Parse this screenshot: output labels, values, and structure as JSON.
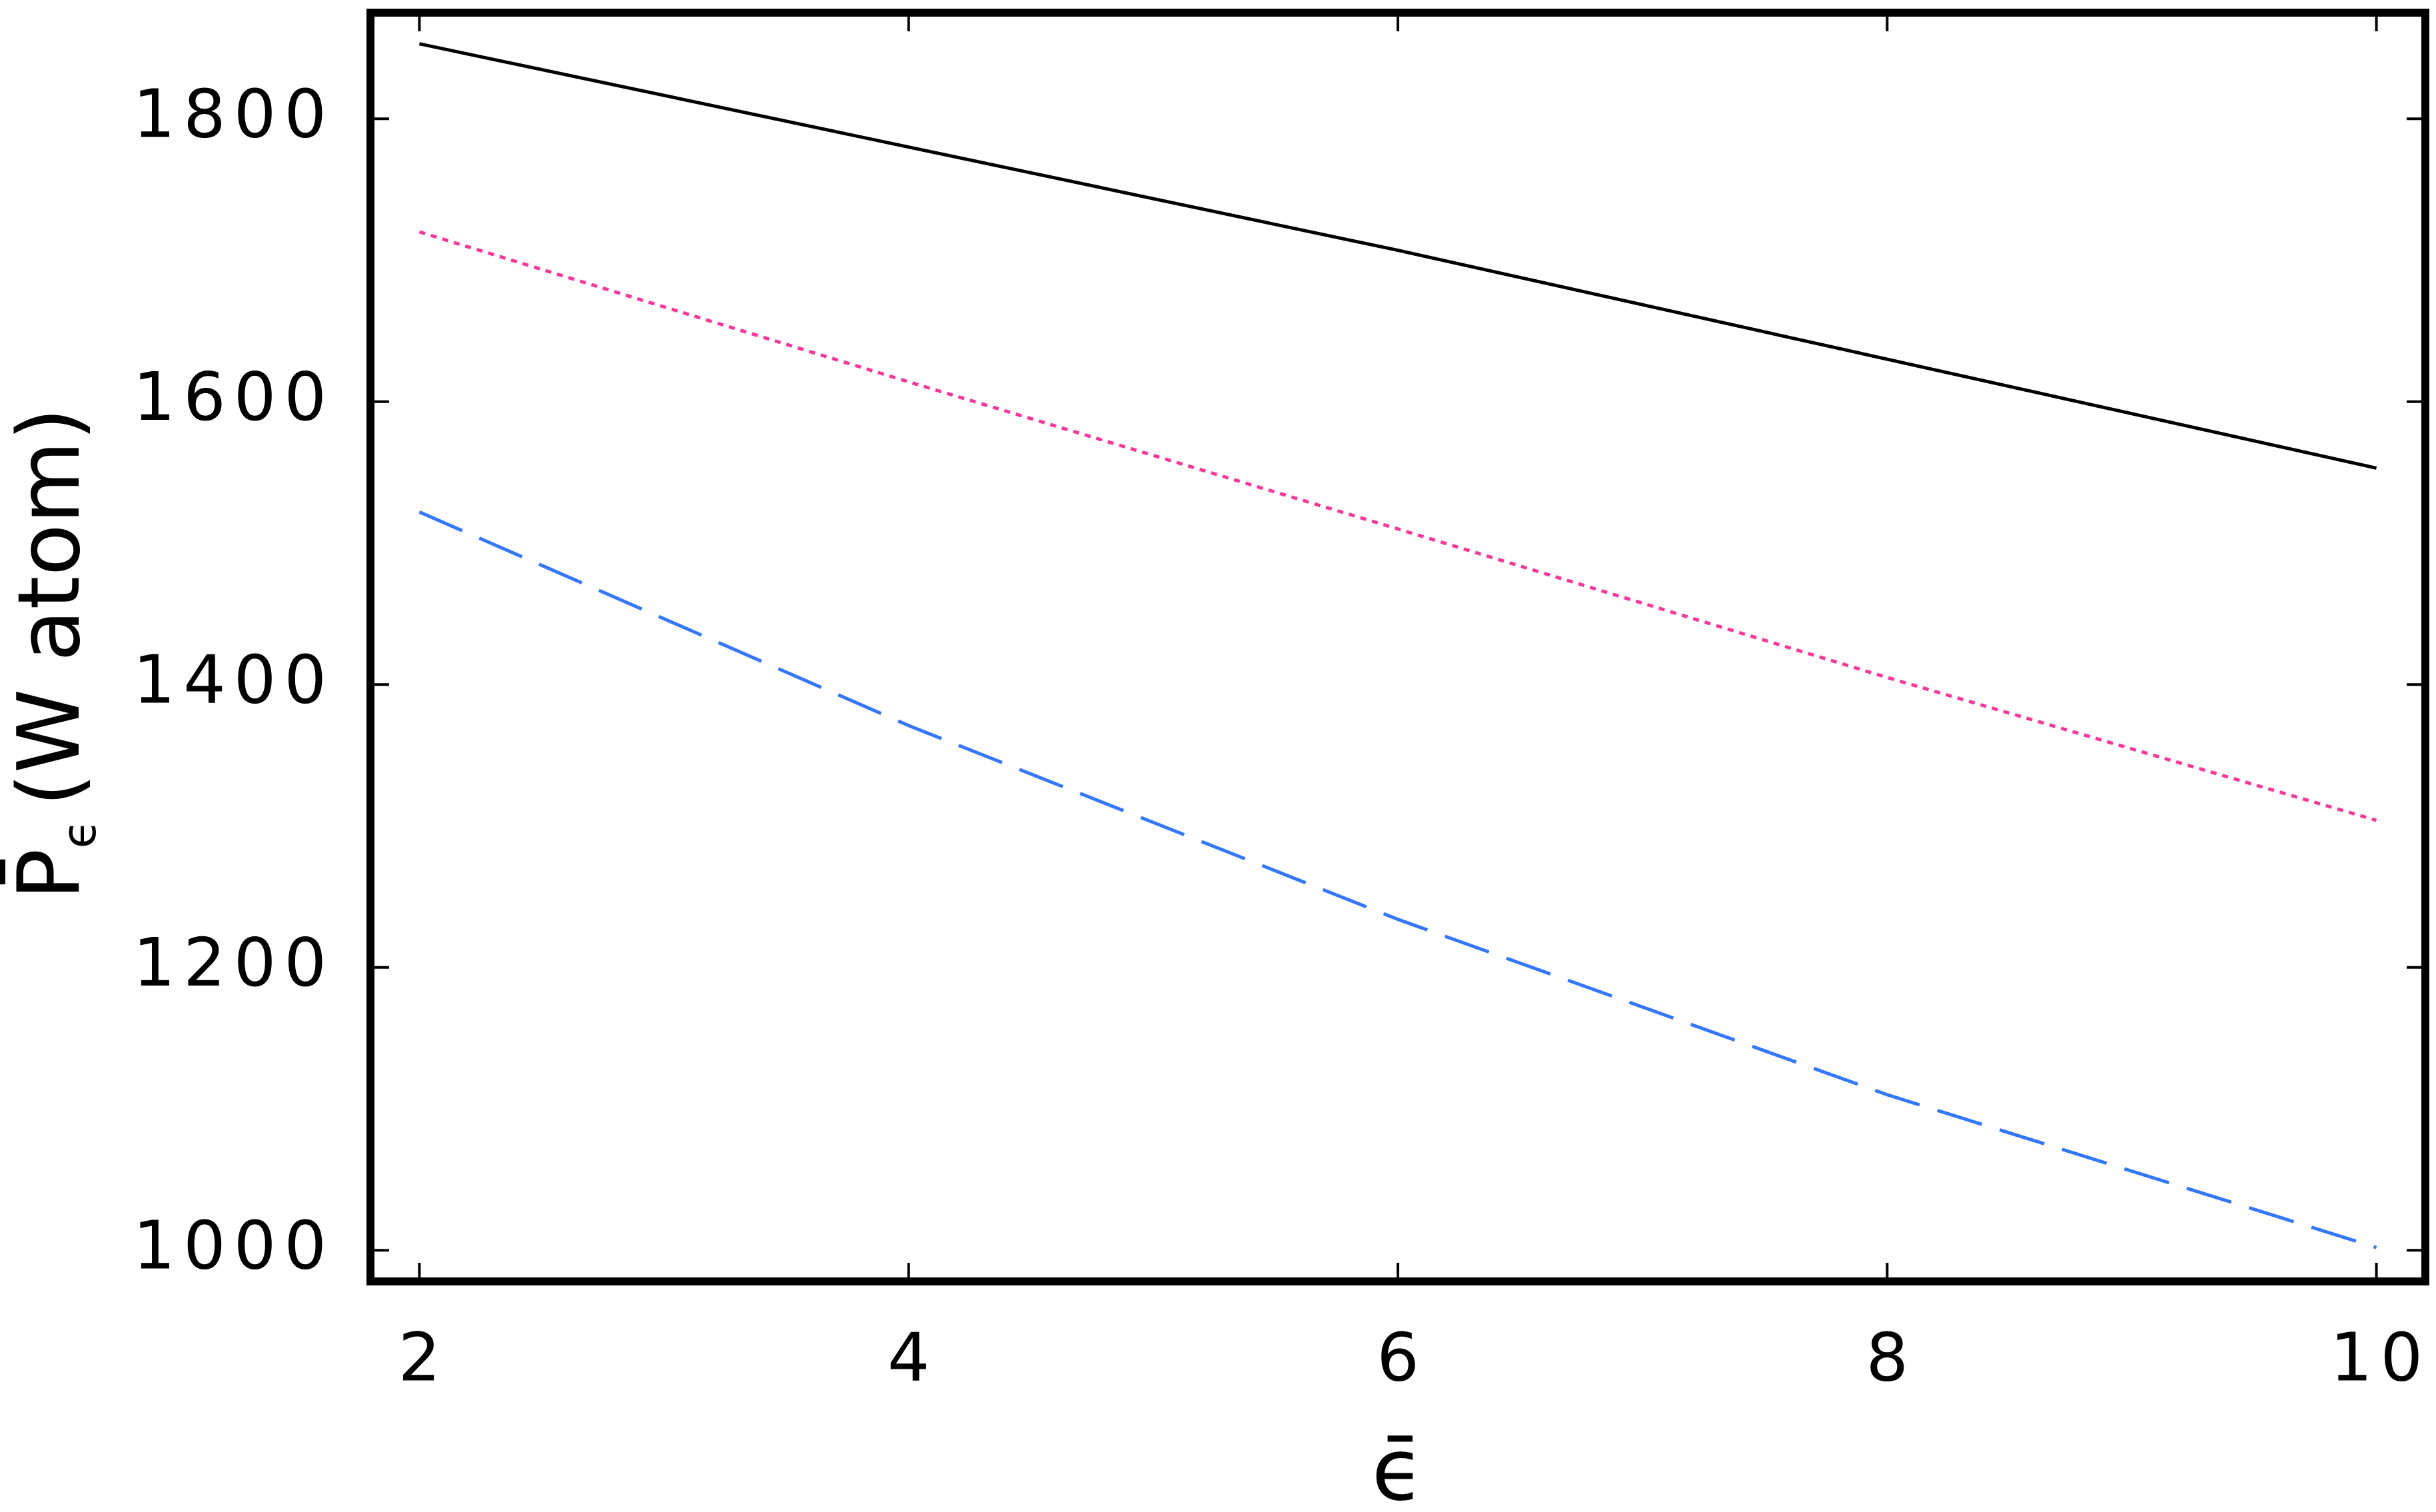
{
  "chart_data": {
    "type": "line",
    "x_label": "ϵ̄",
    "y_label": {
      "symbol": "P̄",
      "subscript": "ϵ",
      "unit": "(W atom)"
    },
    "x": [
      2,
      4,
      6,
      8,
      10
    ],
    "series": [
      {
        "color": "#000000",
        "style": "solid",
        "values": [
          1853,
          1780,
          1707,
          1630,
          1553
        ]
      },
      {
        "color": "#ff3399",
        "style": "dotted",
        "values": [
          1720,
          1614,
          1510,
          1405,
          1304
        ]
      },
      {
        "color": "#3377ff",
        "style": "dashed",
        "values": [
          1522,
          1371,
          1234,
          1110,
          1002
        ]
      }
    ],
    "xlim": [
      1.8,
      10.2
    ],
    "ylim": [
      978,
      1875
    ],
    "xticks": [
      2,
      4,
      6,
      8,
      10
    ],
    "yticks": [
      1000,
      1200,
      1400,
      1600,
      1800
    ]
  }
}
